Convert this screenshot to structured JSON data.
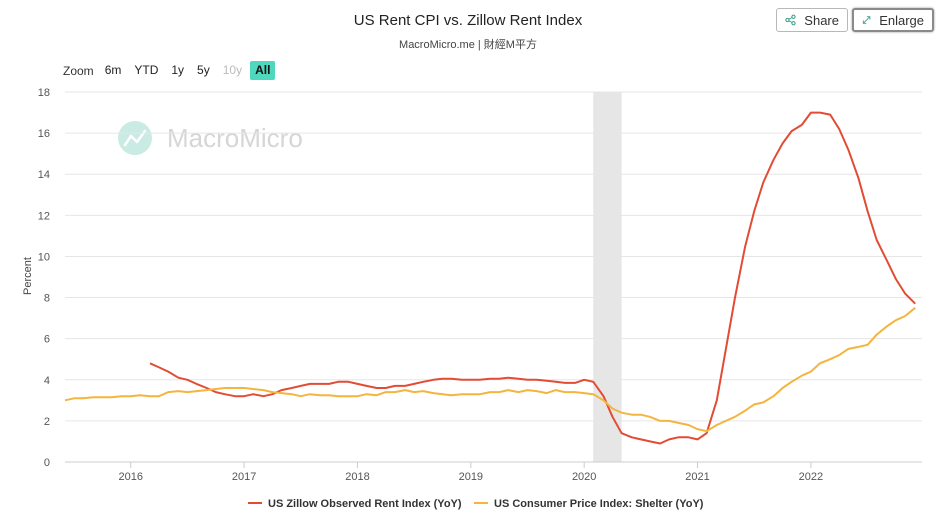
{
  "header": {
    "title": "US Rent CPI vs. Zillow Rent Index",
    "subtitle": "MacroMicro.me | 財經M平方",
    "share_label": "Share",
    "enlarge_label": "Enlarge"
  },
  "zoom": {
    "label": "Zoom",
    "ranges": [
      "6m",
      "YTD",
      "1y",
      "5y",
      "10y",
      "All"
    ],
    "disabled": "10y",
    "selected": "All"
  },
  "watermark": {
    "text": "MacroMicro"
  },
  "colors": {
    "zillow": "#e24c34",
    "cpi": "#f4b53f",
    "recession_band": "#e6e6e6",
    "zoom_active": "#4fd8bd",
    "watermark": "#c9ebe3"
  },
  "chart_data": {
    "type": "line",
    "title": "US Rent CPI vs. Zillow Rent Index",
    "subtitle": "MacroMicro.me | 財經M平方",
    "ylabel": "Percent",
    "xlabel": "",
    "ylim": [
      0,
      18
    ],
    "yticks": [
      0,
      2,
      4,
      6,
      8,
      10,
      12,
      14,
      16,
      18
    ],
    "xlim": [
      2015.42,
      2022.98
    ],
    "xticks": [
      2016,
      2017,
      2018,
      2019,
      2020,
      2021,
      2022
    ],
    "grid": true,
    "legend_position": "bottom",
    "shaded_periods": [
      [
        2020.08,
        2020.33
      ]
    ],
    "series": [
      {
        "name": "US Zillow Observed Rent Index (YoY)",
        "color": "#e24c34",
        "x": [
          2016.17,
          2016.25,
          2016.33,
          2016.42,
          2016.5,
          2016.58,
          2016.67,
          2016.75,
          2016.83,
          2016.92,
          2017.0,
          2017.08,
          2017.17,
          2017.25,
          2017.33,
          2017.42,
          2017.5,
          2017.58,
          2017.67,
          2017.75,
          2017.83,
          2017.92,
          2018.0,
          2018.08,
          2018.17,
          2018.25,
          2018.33,
          2018.42,
          2018.5,
          2018.58,
          2018.67,
          2018.75,
          2018.83,
          2018.92,
          2019.0,
          2019.08,
          2019.17,
          2019.25,
          2019.33,
          2019.42,
          2019.5,
          2019.58,
          2019.67,
          2019.75,
          2019.83,
          2019.92,
          2020.0,
          2020.08,
          2020.17,
          2020.25,
          2020.33,
          2020.42,
          2020.5,
          2020.58,
          2020.67,
          2020.75,
          2020.83,
          2020.92,
          2021.0,
          2021.08,
          2021.17,
          2021.25,
          2021.33,
          2021.42,
          2021.5,
          2021.58,
          2021.67,
          2021.75,
          2021.83,
          2021.92,
          2022.0,
          2022.08,
          2022.17,
          2022.25,
          2022.33,
          2022.42,
          2022.5,
          2022.58,
          2022.67,
          2022.75,
          2022.83,
          2022.92
        ],
        "y": [
          4.8,
          4.6,
          4.4,
          4.1,
          4.0,
          3.8,
          3.6,
          3.4,
          3.3,
          3.2,
          3.2,
          3.3,
          3.2,
          3.3,
          3.5,
          3.6,
          3.7,
          3.8,
          3.8,
          3.8,
          3.9,
          3.9,
          3.8,
          3.7,
          3.6,
          3.6,
          3.7,
          3.7,
          3.8,
          3.9,
          4.0,
          4.05,
          4.05,
          4.0,
          4.0,
          4.0,
          4.05,
          4.05,
          4.1,
          4.05,
          4.0,
          4.0,
          3.95,
          3.9,
          3.85,
          3.85,
          4.0,
          3.9,
          3.2,
          2.2,
          1.4,
          1.2,
          1.1,
          1.0,
          0.9,
          1.1,
          1.2,
          1.2,
          1.1,
          1.4,
          3.0,
          5.5,
          8.0,
          10.5,
          12.2,
          13.6,
          14.7,
          15.5,
          16.1,
          16.4,
          17.0,
          17.0,
          16.9,
          16.2,
          15.2,
          13.8,
          12.2,
          10.8,
          9.8,
          8.9,
          8.2,
          7.7
        ]
      },
      {
        "name": "US Consumer Price Index: Shelter (YoY)",
        "color": "#f4b53f",
        "x": [
          2015.42,
          2015.5,
          2015.58,
          2015.67,
          2015.75,
          2015.83,
          2015.92,
          2016.0,
          2016.08,
          2016.17,
          2016.25,
          2016.33,
          2016.42,
          2016.5,
          2016.58,
          2016.67,
          2016.75,
          2016.83,
          2016.92,
          2017.0,
          2017.08,
          2017.17,
          2017.25,
          2017.33,
          2017.42,
          2017.5,
          2017.58,
          2017.67,
          2017.75,
          2017.83,
          2017.92,
          2018.0,
          2018.08,
          2018.17,
          2018.25,
          2018.33,
          2018.42,
          2018.5,
          2018.58,
          2018.67,
          2018.75,
          2018.83,
          2018.92,
          2019.0,
          2019.08,
          2019.17,
          2019.25,
          2019.33,
          2019.42,
          2019.5,
          2019.58,
          2019.67,
          2019.75,
          2019.83,
          2019.92,
          2020.0,
          2020.08,
          2020.17,
          2020.25,
          2020.33,
          2020.42,
          2020.5,
          2020.58,
          2020.67,
          2020.75,
          2020.83,
          2020.92,
          2021.0,
          2021.08,
          2021.17,
          2021.25,
          2021.33,
          2021.42,
          2021.5,
          2021.58,
          2021.67,
          2021.75,
          2021.83,
          2021.92,
          2022.0,
          2022.08,
          2022.17,
          2022.25,
          2022.33,
          2022.42,
          2022.5,
          2022.58,
          2022.67,
          2022.75,
          2022.83,
          2022.92
        ],
        "y": [
          3.0,
          3.1,
          3.1,
          3.15,
          3.15,
          3.15,
          3.2,
          3.2,
          3.25,
          3.2,
          3.2,
          3.4,
          3.45,
          3.4,
          3.45,
          3.5,
          3.55,
          3.6,
          3.6,
          3.6,
          3.55,
          3.5,
          3.4,
          3.35,
          3.3,
          3.2,
          3.3,
          3.25,
          3.25,
          3.2,
          3.2,
          3.2,
          3.3,
          3.25,
          3.4,
          3.4,
          3.5,
          3.4,
          3.45,
          3.35,
          3.3,
          3.25,
          3.3,
          3.3,
          3.3,
          3.4,
          3.4,
          3.5,
          3.4,
          3.5,
          3.45,
          3.35,
          3.5,
          3.4,
          3.4,
          3.35,
          3.3,
          3.0,
          2.6,
          2.4,
          2.3,
          2.3,
          2.2,
          2.0,
          2.0,
          1.9,
          1.8,
          1.6,
          1.5,
          1.8,
          2.0,
          2.2,
          2.5,
          2.8,
          2.9,
          3.2,
          3.6,
          3.9,
          4.2,
          4.4,
          4.8,
          5.0,
          5.2,
          5.5,
          5.6,
          5.7,
          6.2,
          6.6,
          6.9,
          7.1,
          7.5
        ]
      }
    ]
  }
}
